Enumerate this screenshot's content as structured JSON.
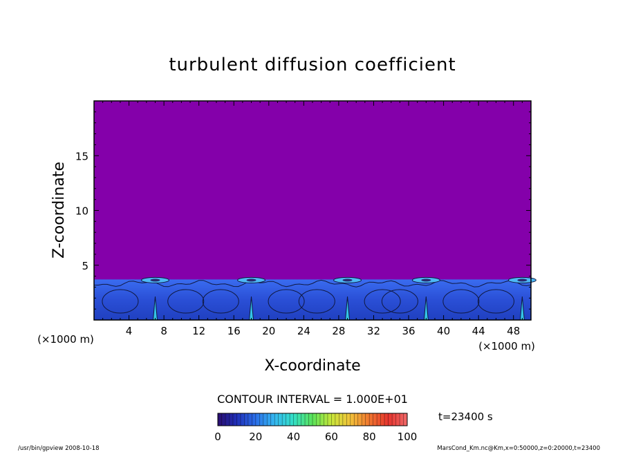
{
  "chart_data": {
    "type": "heatmap",
    "title": "turbulent diffusion coefficient",
    "xlabel": "X-coordinate",
    "ylabel": "Z-coordinate",
    "x_unit_left": "(×1000 m)",
    "x_unit_right": "(×1000 m)",
    "xlim": [
      0,
      50
    ],
    "ylim": [
      0,
      20
    ],
    "xticks": [
      4,
      8,
      12,
      16,
      20,
      24,
      28,
      32,
      36,
      40,
      44,
      48
    ],
    "yticks": [
      5,
      10,
      15
    ],
    "background_value": 0,
    "convective_layer_top": 3.7,
    "plume_centers": [
      7,
      18,
      29,
      38,
      49
    ],
    "contour_interval_label": "CONTOUR INTERVAL = 1.000E+01",
    "colorbar": {
      "min": 0,
      "max": 100,
      "tick_labels": [
        "0",
        "20",
        "40",
        "60",
        "80",
        "100"
      ],
      "colors": [
        "#2a0d6e",
        "#1f2fb8",
        "#2b6fe8",
        "#35b8f0",
        "#33e0c6",
        "#5be35a",
        "#c8e63a",
        "#f2c23a",
        "#f0762f",
        "#e6342e",
        "#f06a6a"
      ]
    },
    "time_label": "t=23400 s"
  },
  "footer": {
    "left": "/usr/bin/gpview   2008-10-18",
    "right": "MarsCond_Km.nc@Km,x=0:50000,z=0:20000,t=23400"
  },
  "colors": {
    "background_field": "#8400aa",
    "layer_field": "#2850d8"
  }
}
